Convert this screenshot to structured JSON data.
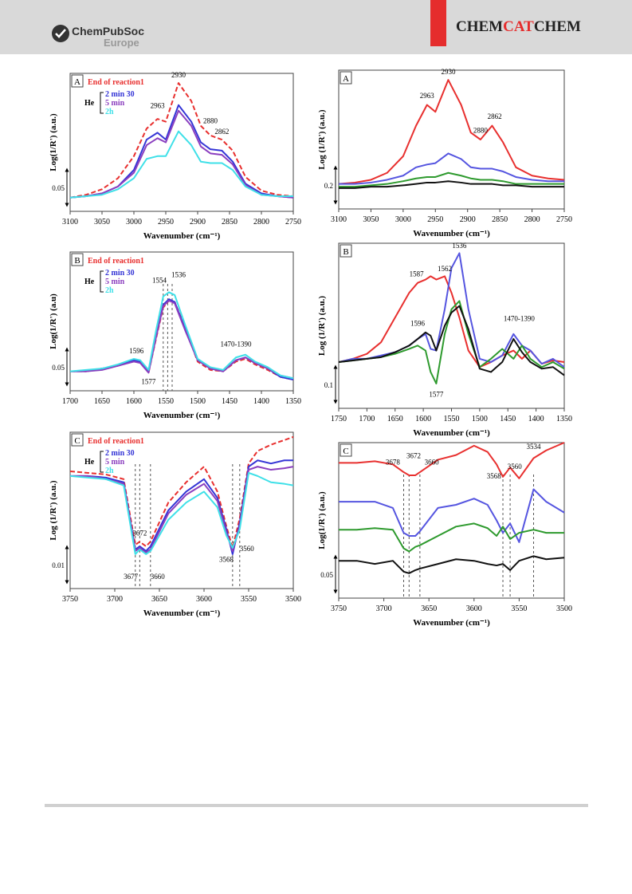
{
  "header": {
    "society": "ChemPubSoc",
    "region": "Europe",
    "journal_parts": [
      "CHEM",
      "CAT",
      "CHEM"
    ]
  },
  "chart_data": [
    {
      "type": "line",
      "panel_label": "A",
      "xlabel": "Wavenumber (cm⁻¹)",
      "ylabel": "Log(1/R') (a.u.)",
      "scale_label": "0.05",
      "xlim": [
        3100,
        2750
      ],
      "xticks": [
        3100,
        3050,
        3000,
        2950,
        2900,
        2850,
        2800,
        2750
      ],
      "ylim": [
        0,
        100
      ],
      "x": [
        3100,
        3075,
        3050,
        3025,
        3000,
        2980,
        2963,
        2950,
        2930,
        2910,
        2895,
        2880,
        2862,
        2845,
        2825,
        2800,
        2775,
        2750
      ],
      "legend_title": "End of reaction1",
      "legend_group_label": "He",
      "series": [
        {
          "color": "#e8302f",
          "dash": true,
          "values": [
            10,
            12,
            16,
            24,
            40,
            60,
            67,
            65,
            93,
            80,
            62,
            55,
            52,
            44,
            25,
            15,
            12,
            11
          ]
        },
        {
          "name": "2 min 30",
          "color": "#3535d6",
          "values": [
            10,
            11,
            13,
            18,
            30,
            52,
            57,
            52,
            77,
            65,
            50,
            45,
            44,
            36,
            20,
            13,
            11,
            10
          ]
        },
        {
          "name": "5 min",
          "color": "#8b3fbf",
          "values": [
            10,
            11,
            13,
            18,
            28,
            48,
            53,
            50,
            73,
            62,
            47,
            42,
            41,
            34,
            19,
            12,
            11,
            10
          ]
        },
        {
          "name": "2h",
          "color": "#3fe0e8",
          "values": [
            10,
            11,
            12,
            16,
            24,
            38,
            40,
            40,
            58,
            48,
            36,
            35,
            35,
            30,
            18,
            12,
            11,
            11
          ]
        }
      ],
      "annotations": [
        {
          "text": "2930",
          "x": 2930,
          "y": 97
        },
        {
          "text": "2963",
          "x": 2963,
          "y": 75
        },
        {
          "text": "2880",
          "x": 2880,
          "y": 64
        },
        {
          "text": "2862",
          "x": 2862,
          "y": 56
        }
      ],
      "guides": []
    },
    {
      "type": "line",
      "panel_label": "B",
      "xlabel": "Wavenumber (cm⁻¹)",
      "ylabel": "Log(1/R') (a.u)",
      "scale_label": "0.05",
      "xlim": [
        1700,
        1350
      ],
      "xticks": [
        1700,
        1650,
        1600,
        1550,
        1500,
        1450,
        1400,
        1350
      ],
      "ylim": [
        0,
        100
      ],
      "x": [
        1700,
        1675,
        1650,
        1625,
        1600,
        1590,
        1577,
        1565,
        1554,
        1545,
        1536,
        1520,
        1500,
        1480,
        1460,
        1440,
        1425,
        1410,
        1390,
        1370,
        1350
      ],
      "legend_title": "End of reaction1",
      "legend_group_label": "He",
      "series": [
        {
          "color": "#e8302f",
          "dash": true,
          "values": [
            14,
            14,
            16,
            18,
            22,
            21,
            13,
            38,
            60,
            65,
            64,
            46,
            21,
            15,
            14,
            21,
            23,
            19,
            15,
            10,
            8
          ]
        },
        {
          "name": "2 min 30",
          "color": "#3535d6",
          "values": [
            14,
            14,
            16,
            18,
            22,
            21,
            14,
            40,
            62,
            66,
            64,
            45,
            22,
            16,
            14,
            22,
            24,
            20,
            16,
            10,
            8
          ]
        },
        {
          "name": "5 min",
          "color": "#8b3fbf",
          "values": [
            14,
            14,
            15,
            18,
            21,
            20,
            13,
            39,
            61,
            65,
            63,
            44,
            22,
            16,
            14,
            22,
            24,
            20,
            16,
            11,
            9
          ]
        },
        {
          "name": "2h",
          "color": "#3fe0e8",
          "values": [
            14,
            15,
            16,
            19,
            23,
            22,
            15,
            44,
            68,
            71,
            69,
            48,
            23,
            17,
            15,
            24,
            26,
            21,
            17,
            11,
            9
          ]
        }
      ],
      "annotations": [
        {
          "text": "1596",
          "x": 1596,
          "y": 27
        },
        {
          "text": "1577",
          "x": 1577,
          "y": 5
        },
        {
          "text": "1554",
          "x": 1560,
          "y": 78
        },
        {
          "text": "1536",
          "x": 1530,
          "y": 82
        },
        {
          "text": "1470-1390",
          "x": 1440,
          "y": 32
        }
      ],
      "guides": [
        1554,
        1547,
        1540
      ]
    },
    {
      "type": "line",
      "panel_label": "C",
      "xlabel": "Wavenumber (cm⁻¹)",
      "ylabel": "Log (1/R') (a.u.)",
      "scale_label": "0.01",
      "xlim": [
        3750,
        3500
      ],
      "xticks": [
        3750,
        3700,
        3650,
        3600,
        3550,
        3500
      ],
      "ylim": [
        0,
        100
      ],
      "x": [
        3750,
        3730,
        3710,
        3690,
        3677,
        3672,
        3665,
        3660,
        3640,
        3620,
        3600,
        3585,
        3575,
        3568,
        3560,
        3550,
        3540,
        3525,
        3510,
        3500
      ],
      "legend_title": "End of reaction1",
      "legend_group_label": "He",
      "series": [
        {
          "color": "#e8302f",
          "dash": true,
          "values": [
            75,
            74,
            73,
            70,
            28,
            30,
            27,
            30,
            55,
            68,
            78,
            62,
            40,
            26,
            45,
            80,
            88,
            92,
            95,
            97
          ]
        },
        {
          "name": "2 min 30",
          "color": "#3535d6",
          "values": [
            72,
            72,
            71,
            68,
            25,
            27,
            24,
            27,
            50,
            62,
            70,
            58,
            38,
            22,
            42,
            78,
            82,
            80,
            82,
            82
          ]
        },
        {
          "name": "5 min",
          "color": "#8b3fbf",
          "values": [
            72,
            72,
            70,
            67,
            24,
            26,
            23,
            25,
            48,
            60,
            67,
            56,
            36,
            24,
            40,
            76,
            78,
            76,
            77,
            78
          ]
        },
        {
          "name": "2h",
          "color": "#3fe0e8",
          "values": [
            72,
            71,
            70,
            66,
            22,
            25,
            22,
            24,
            44,
            55,
            62,
            52,
            34,
            26,
            38,
            74,
            72,
            68,
            67,
            66
          ]
        }
      ],
      "annotations": [
        {
          "text": "3672",
          "x": 3672,
          "y": 34
        },
        {
          "text": "3677",
          "x": 3682,
          "y": 6
        },
        {
          "text": "3660",
          "x": 3652,
          "y": 6
        },
        {
          "text": "3568",
          "x": 3575,
          "y": 17
        },
        {
          "text": "3560",
          "x": 3552,
          "y": 24
        }
      ],
      "guides": [
        3677,
        3672,
        3660,
        3568,
        3560
      ]
    },
    {
      "type": "line",
      "panel_label": "A",
      "xlabel": "Wavenumber (cm⁻¹)",
      "ylabel": "Log (1/R') (a.u.)",
      "scale_label": "0.2",
      "xlim": [
        3100,
        2750
      ],
      "xticks": [
        3100,
        3050,
        3000,
        2950,
        2900,
        2850,
        2800,
        2750
      ],
      "ylim": [
        0,
        100
      ],
      "x": [
        3100,
        3075,
        3050,
        3025,
        3000,
        2980,
        2963,
        2950,
        2930,
        2910,
        2895,
        2880,
        2862,
        2845,
        2825,
        2800,
        2775,
        2750
      ],
      "series": [
        {
          "color": "#e8302f",
          "values": [
            18,
            19,
            21,
            26,
            38,
            60,
            75,
            70,
            93,
            75,
            55,
            50,
            60,
            48,
            30,
            24,
            22,
            21
          ]
        },
        {
          "color": "#5555e0",
          "values": [
            18,
            18,
            19,
            21,
            24,
            30,
            32,
            33,
            40,
            36,
            30,
            29,
            29,
            27,
            23,
            21,
            20,
            20
          ]
        },
        {
          "color": "#2e9a2e",
          "values": [
            16,
            16,
            17,
            18,
            20,
            22,
            23,
            23,
            26,
            24,
            22,
            21,
            21,
            20,
            18,
            18,
            18,
            18
          ]
        },
        {
          "color": "#111111",
          "values": [
            15,
            15,
            16,
            16,
            17,
            18,
            19,
            19,
            20,
            19,
            18,
            18,
            18,
            17,
            17,
            16,
            16,
            16
          ]
        }
      ],
      "annotations": [
        {
          "text": "2930",
          "x": 2930,
          "y": 97
        },
        {
          "text": "2963",
          "x": 2963,
          "y": 80
        },
        {
          "text": "2880",
          "x": 2880,
          "y": 55
        },
        {
          "text": "2862",
          "x": 2858,
          "y": 65
        }
      ],
      "guides": []
    },
    {
      "type": "line",
      "panel_label": "B",
      "xlabel": "Wavenumber (cm⁻¹)",
      "ylabel": "Log (1/R') (a.u.)",
      "scale_label": "0.1",
      "xlim": [
        1750,
        1350
      ],
      "xticks": [
        1750,
        1700,
        1650,
        1600,
        1550,
        1500,
        1450,
        1400,
        1350
      ],
      "ylim": [
        0,
        100
      ],
      "x": [
        1750,
        1725,
        1700,
        1675,
        1650,
        1625,
        1610,
        1596,
        1587,
        1577,
        1562,
        1550,
        1536,
        1520,
        1500,
        1480,
        1460,
        1440,
        1425,
        1410,
        1390,
        1370,
        1350
      ],
      "series": [
        {
          "color": "#e8302f",
          "values": [
            28,
            30,
            33,
            40,
            55,
            70,
            76,
            78,
            80,
            78,
            80,
            70,
            55,
            35,
            25,
            28,
            32,
            35,
            30,
            35,
            27,
            29,
            28
          ]
        },
        {
          "color": "#5555e0",
          "values": [
            28,
            30,
            30,
            32,
            34,
            38,
            42,
            45,
            36,
            35,
            60,
            85,
            94,
            60,
            30,
            28,
            32,
            45,
            38,
            35,
            27,
            30,
            25
          ]
        },
        {
          "color": "#2e9a2e",
          "values": [
            28,
            29,
            30,
            31,
            33,
            36,
            38,
            35,
            22,
            15,
            45,
            60,
            65,
            45,
            25,
            30,
            36,
            30,
            38,
            30,
            25,
            28,
            24
          ]
        },
        {
          "color": "#111111",
          "values": [
            28,
            29,
            30,
            31,
            34,
            38,
            42,
            46,
            44,
            35,
            50,
            58,
            62,
            48,
            24,
            22,
            28,
            42,
            34,
            28,
            24,
            25,
            20
          ]
        }
      ],
      "annotations": [
        {
          "text": "1536",
          "x": 1536,
          "y": 97
        },
        {
          "text": "1562",
          "x": 1562,
          "y": 83
        },
        {
          "text": "1587",
          "x": 1612,
          "y": 80
        },
        {
          "text": "1596",
          "x": 1610,
          "y": 50
        },
        {
          "text": "1577",
          "x": 1577,
          "y": 7
        },
        {
          "text": "1470-1390",
          "x": 1430,
          "y": 53
        }
      ],
      "guides": []
    },
    {
      "type": "line",
      "panel_label": "C",
      "xlabel": "Wavenumber (cm⁻¹)",
      "ylabel": "Log(1/R') (a.u.)",
      "scale_label": "0.05",
      "xlim": [
        3750,
        3500
      ],
      "xticks": [
        3750,
        3700,
        3650,
        3600,
        3550,
        3500
      ],
      "ylim": [
        0,
        100
      ],
      "x": [
        3750,
        3730,
        3710,
        3690,
        3678,
        3672,
        3665,
        3660,
        3640,
        3620,
        3600,
        3585,
        3575,
        3568,
        3560,
        3550,
        3534,
        3520,
        3500
      ],
      "series": [
        {
          "color": "#e8302f",
          "values": [
            87,
            87,
            88,
            86,
            81,
            79,
            79,
            81,
            89,
            92,
            98,
            94,
            86,
            78,
            84,
            77,
            90,
            95,
            100
          ]
        },
        {
          "color": "#5555e0",
          "values": [
            62,
            62,
            62,
            58,
            42,
            40,
            40,
            43,
            58,
            60,
            64,
            60,
            50,
            42,
            48,
            36,
            70,
            62,
            55
          ]
        },
        {
          "color": "#2e9a2e",
          "values": [
            44,
            44,
            45,
            44,
            32,
            30,
            33,
            34,
            40,
            46,
            48,
            45,
            40,
            46,
            38,
            42,
            44,
            42,
            42
          ]
        },
        {
          "color": "#111111",
          "values": [
            24,
            24,
            22,
            24,
            17,
            16,
            18,
            19,
            22,
            25,
            24,
            22,
            21,
            22,
            18,
            24,
            27,
            25,
            26
          ]
        }
      ],
      "annotations": [
        {
          "text": "3678",
          "x": 3690,
          "y": 86
        },
        {
          "text": "3672",
          "x": 3667,
          "y": 90
        },
        {
          "text": "3660",
          "x": 3647,
          "y": 86
        },
        {
          "text": "3568",
          "x": 3578,
          "y": 77
        },
        {
          "text": "3560",
          "x": 3555,
          "y": 83
        },
        {
          "text": "3534",
          "x": 3534,
          "y": 96
        }
      ],
      "guides": [
        3678,
        3672,
        3660,
        3568,
        3560,
        3534
      ]
    }
  ]
}
